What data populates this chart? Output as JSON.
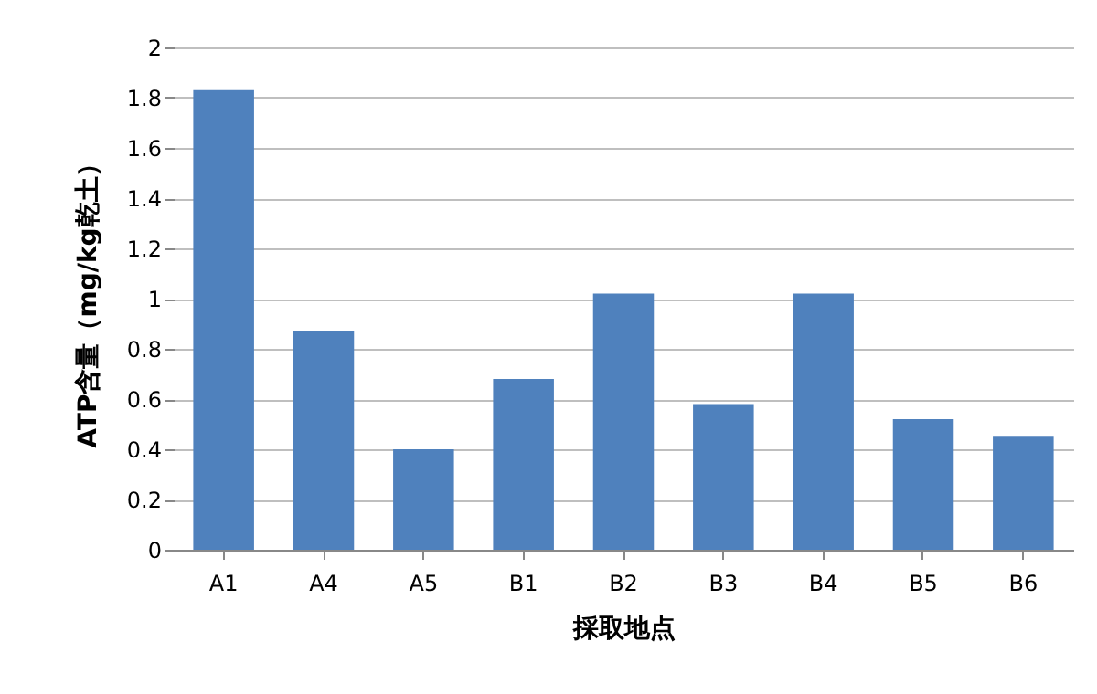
{
  "chart_data": {
    "type": "bar",
    "xlabel": "採取地点",
    "ylabel": "ATP含量（mg/kg乾土）",
    "categories": [
      "A1",
      "A4",
      "A5",
      "B1",
      "B2",
      "B3",
      "B4",
      "B5",
      "B6"
    ],
    "values": [
      1.83,
      0.87,
      0.4,
      0.68,
      1.02,
      0.58,
      1.02,
      0.52,
      0.45
    ],
    "color": "#4f81bd",
    "ylim": [
      0,
      2
    ],
    "yticks": [
      0,
      0.2,
      0.4,
      0.6,
      0.8,
      1,
      1.2,
      1.4,
      1.6,
      1.8,
      2
    ],
    "grid": "y"
  }
}
